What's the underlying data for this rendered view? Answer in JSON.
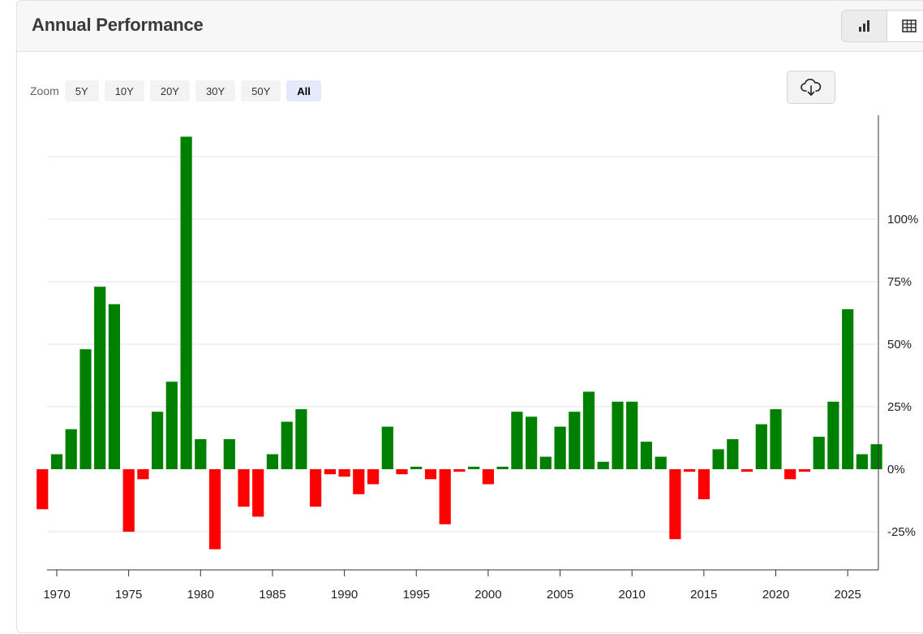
{
  "header": {
    "title": "Annual Performance",
    "view_toggle": [
      {
        "icon": "bar-chart-icon",
        "active": true
      },
      {
        "icon": "table-icon",
        "active": false
      }
    ]
  },
  "zoom": {
    "label": "Zoom",
    "options": [
      {
        "label": "5Y",
        "active": false
      },
      {
        "label": "10Y",
        "active": false
      },
      {
        "label": "20Y",
        "active": false
      },
      {
        "label": "30Y",
        "active": false
      },
      {
        "label": "50Y",
        "active": false
      },
      {
        "label": "All",
        "active": true
      }
    ]
  },
  "download": {
    "icon": "cloud-download-icon"
  },
  "colors": {
    "positive": "#008000",
    "negative": "#ff0000",
    "grid": "#e6e6e6",
    "axis": "#333333"
  },
  "chart_data": {
    "type": "bar",
    "title": "Annual Performance",
    "xlabel": "",
    "ylabel": "",
    "x_ticks": [
      1970,
      1975,
      1980,
      1985,
      1990,
      1995,
      2000,
      2005,
      2010,
      2015,
      2020,
      2025
    ],
    "y_ticks": [
      -25,
      0,
      25,
      50,
      75,
      100
    ],
    "y_tick_format": "{v}%",
    "ylim": [
      -40,
      140
    ],
    "xlim": [
      1969.4,
      2027.5
    ],
    "grid": true,
    "y_axis_position": "right",
    "series": [
      {
        "x": [
          1969,
          1970,
          1971,
          1972,
          1973,
          1974,
          1975,
          1976,
          1977,
          1978,
          1979,
          1980,
          1981,
          1982,
          1983,
          1984,
          1985,
          1986,
          1987,
          1988,
          1989,
          1990,
          1991,
          1992,
          1993,
          1994,
          1995,
          1996,
          1997,
          1998,
          1999,
          2000,
          2001,
          2002,
          2003,
          2004,
          2005,
          2006,
          2007,
          2008,
          2009,
          2010,
          2011,
          2012,
          2013,
          2014,
          2015,
          2016,
          2017,
          2018,
          2019,
          2020,
          2021,
          2022,
          2023,
          2024,
          2025,
          2026,
          2027
        ],
        "values": [
          -16,
          6,
          16,
          48,
          73,
          66,
          -25,
          -4,
          23,
          35,
          133,
          12,
          -32,
          12,
          -15,
          -19,
          6,
          19,
          24,
          -15,
          -2,
          -3,
          -10,
          -6,
          17,
          -2,
          1,
          -4,
          -22,
          -1,
          1,
          -6,
          1,
          23,
          21,
          5,
          17,
          23,
          31,
          3,
          27,
          27,
          11,
          5,
          -28,
          -1,
          -12,
          8,
          12,
          -1,
          18,
          24,
          -4,
          -1,
          13,
          27,
          64,
          6,
          10
        ]
      }
    ]
  }
}
